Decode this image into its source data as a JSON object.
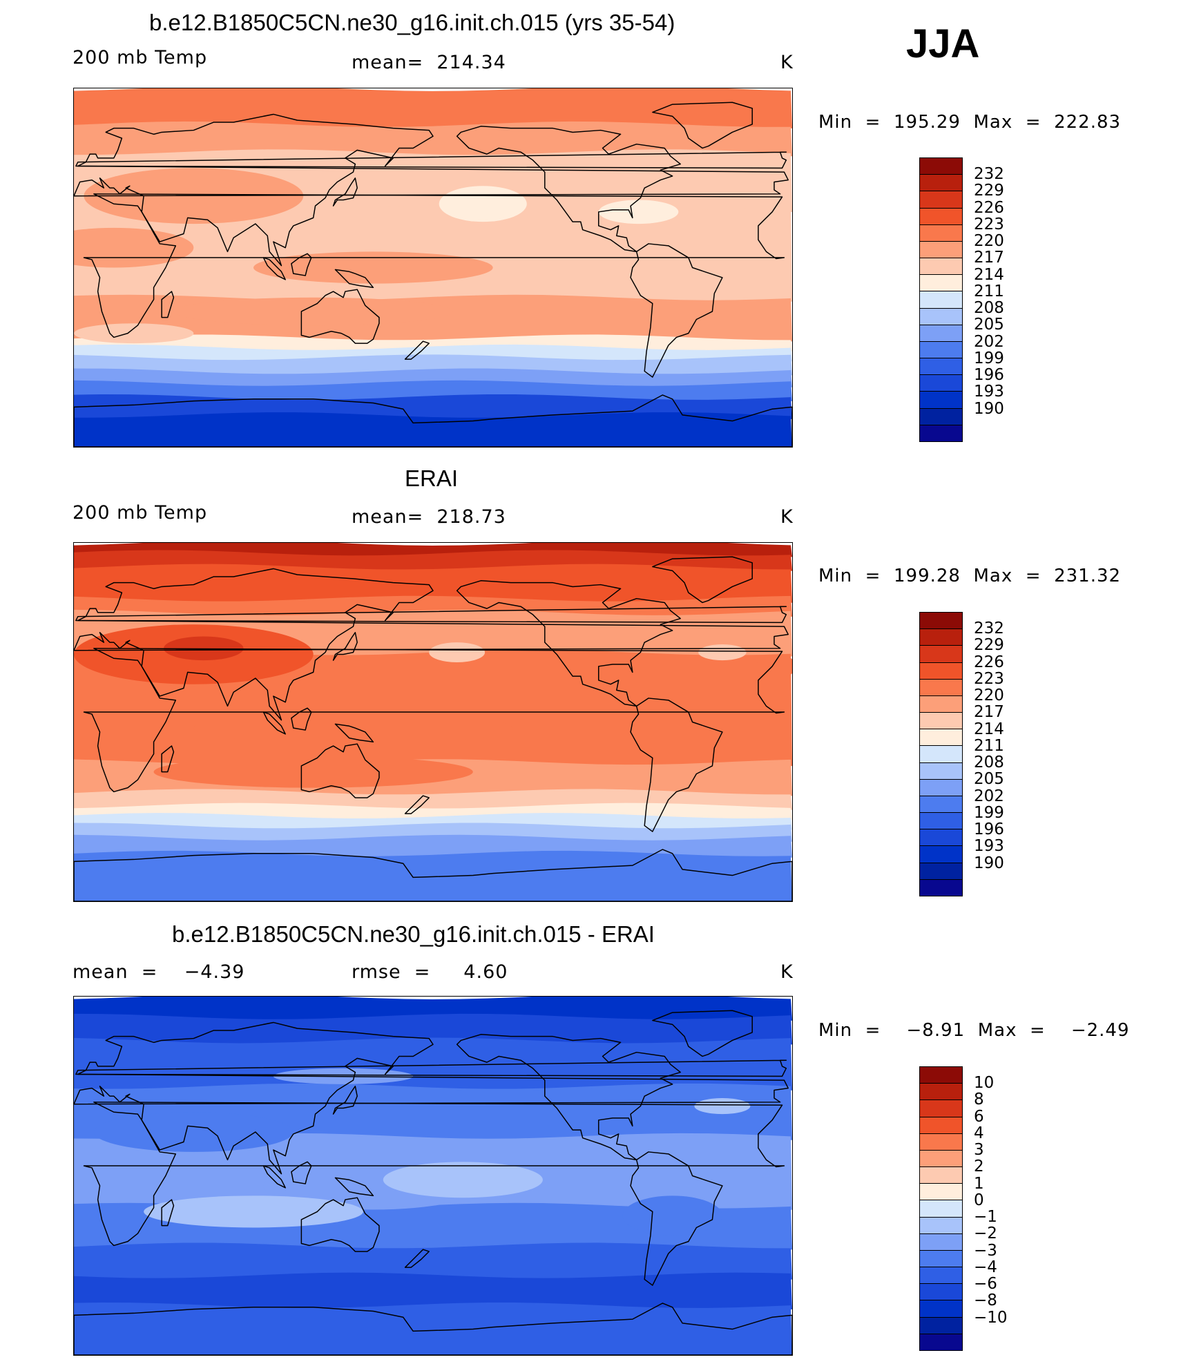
{
  "season": "JJA",
  "colors": {
    "abs": [
      "#08088f",
      "#0022a0",
      "#0033c8",
      "#1a48d8",
      "#2f5fe5",
      "#4d7cef",
      "#7da0f6",
      "#a8c3fa",
      "#d4e6fb",
      "#ffeedd",
      "#fdcab1",
      "#fc9f79",
      "#f9784c",
      "#f0542a",
      "#d8371a",
      "#b8200d",
      "#8c0b06"
    ],
    "diff": [
      "#08088f",
      "#0022a0",
      "#0033c8",
      "#1a48d8",
      "#2f5fe5",
      "#4d7cef",
      "#7da0f6",
      "#a8c3fa",
      "#d4e6fb",
      "#ffeedd",
      "#fdcab1",
      "#fc9f79",
      "#f9784c",
      "#f0542a",
      "#d8371a",
      "#b8200d",
      "#8c0b06"
    ]
  },
  "panels": [
    {
      "title": "b.e12.B1850C5CN.ne30_g16.init.ch.015 (yrs 35-54)",
      "left_label": "200 mb Temp",
      "center_label": "mean=  214.34",
      "units": "K",
      "minmax": "Min  =  195.29  Max  =  222.83",
      "colorbar_labels": [
        "232",
        "229",
        "226",
        "223",
        "220",
        "217",
        "214",
        "211",
        "208",
        "205",
        "202",
        "199",
        "196",
        "193",
        "190"
      ],
      "map_type": "model"
    },
    {
      "title": "ERAI",
      "left_label": "200 mb Temp",
      "center_label": "mean=  218.73",
      "units": "K",
      "minmax": "Min  =  199.28  Max  =  231.32",
      "colorbar_labels": [
        "232",
        "229",
        "226",
        "223",
        "220",
        "217",
        "214",
        "211",
        "208",
        "205",
        "202",
        "199",
        "196",
        "193",
        "190"
      ],
      "map_type": "obs"
    },
    {
      "title": "b.e12.B1850C5CN.ne30_g16.init.ch.015 - ERAI",
      "left_label": "mean  =    −4.39",
      "center_label": "rmse  =     4.60",
      "units": "K",
      "minmax": "Min  =    −8.91  Max  =    −2.49",
      "colorbar_labels": [
        "10",
        "8",
        "6",
        "4",
        "3",
        "2",
        "1",
        "0",
        "−1",
        "−2",
        "−3",
        "−4",
        "−6",
        "−8",
        "−10"
      ],
      "map_type": "diff"
    }
  ]
}
